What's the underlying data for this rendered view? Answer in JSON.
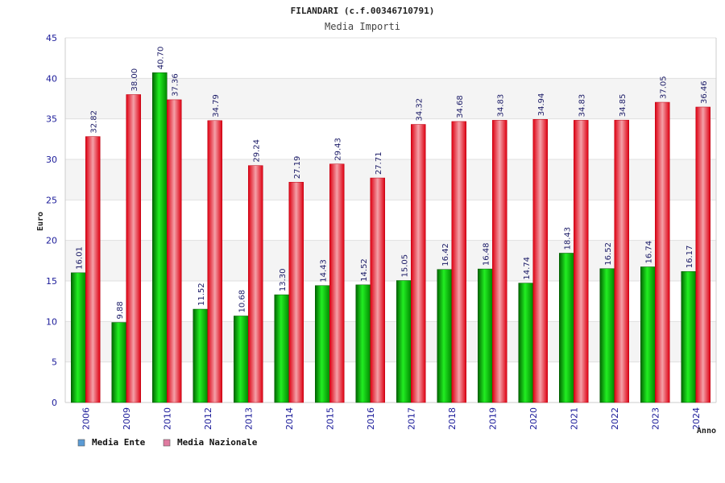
{
  "chart_data": {
    "type": "bar",
    "title": "FILANDARI (c.f.00346710791)",
    "subtitle": "Media Importi",
    "xlabel": "Anno",
    "ylabel": "Euro",
    "ylim": [
      0,
      45
    ],
    "ytick_step": 5,
    "grid": true,
    "legend_position": "bottom-left",
    "categories": [
      "2006",
      "2009",
      "2010",
      "2012",
      "2013",
      "2014",
      "2015",
      "2016",
      "2017",
      "2018",
      "2019",
      "2020",
      "2021",
      "2022",
      "2023",
      "2024"
    ],
    "series": [
      {
        "name": "Media Ente",
        "color": "#00aa00",
        "legend_color": "#5b9bd5",
        "values": [
          16.01,
          9.88,
          40.7,
          11.52,
          10.68,
          13.3,
          14.43,
          14.52,
          15.05,
          16.42,
          16.48,
          14.74,
          18.43,
          16.52,
          16.74,
          16.17
        ],
        "labels": [
          "16.01",
          "9.88",
          "40.70",
          "11.52",
          "10.68",
          "13.30",
          "14.43",
          "14.52",
          "15.05",
          "16.42",
          "16.48",
          "14.74",
          "18.43",
          "16.52",
          "16.74",
          "16.17"
        ]
      },
      {
        "name": "Media Nazionale",
        "color": "#e8182c",
        "legend_color": "#e07ba0",
        "values": [
          32.82,
          38.0,
          37.36,
          34.79,
          29.24,
          27.19,
          29.43,
          27.71,
          34.32,
          34.68,
          34.83,
          34.94,
          34.83,
          34.85,
          37.05,
          36.46
        ],
        "labels": [
          "32.82",
          "38.00",
          "37.36",
          "34.79",
          "29.24",
          "27.19",
          "29.43",
          "27.71",
          "34.32",
          "34.68",
          "34.83",
          "34.94",
          "34.83",
          "34.85",
          "37.05",
          "36.46"
        ]
      }
    ]
  }
}
